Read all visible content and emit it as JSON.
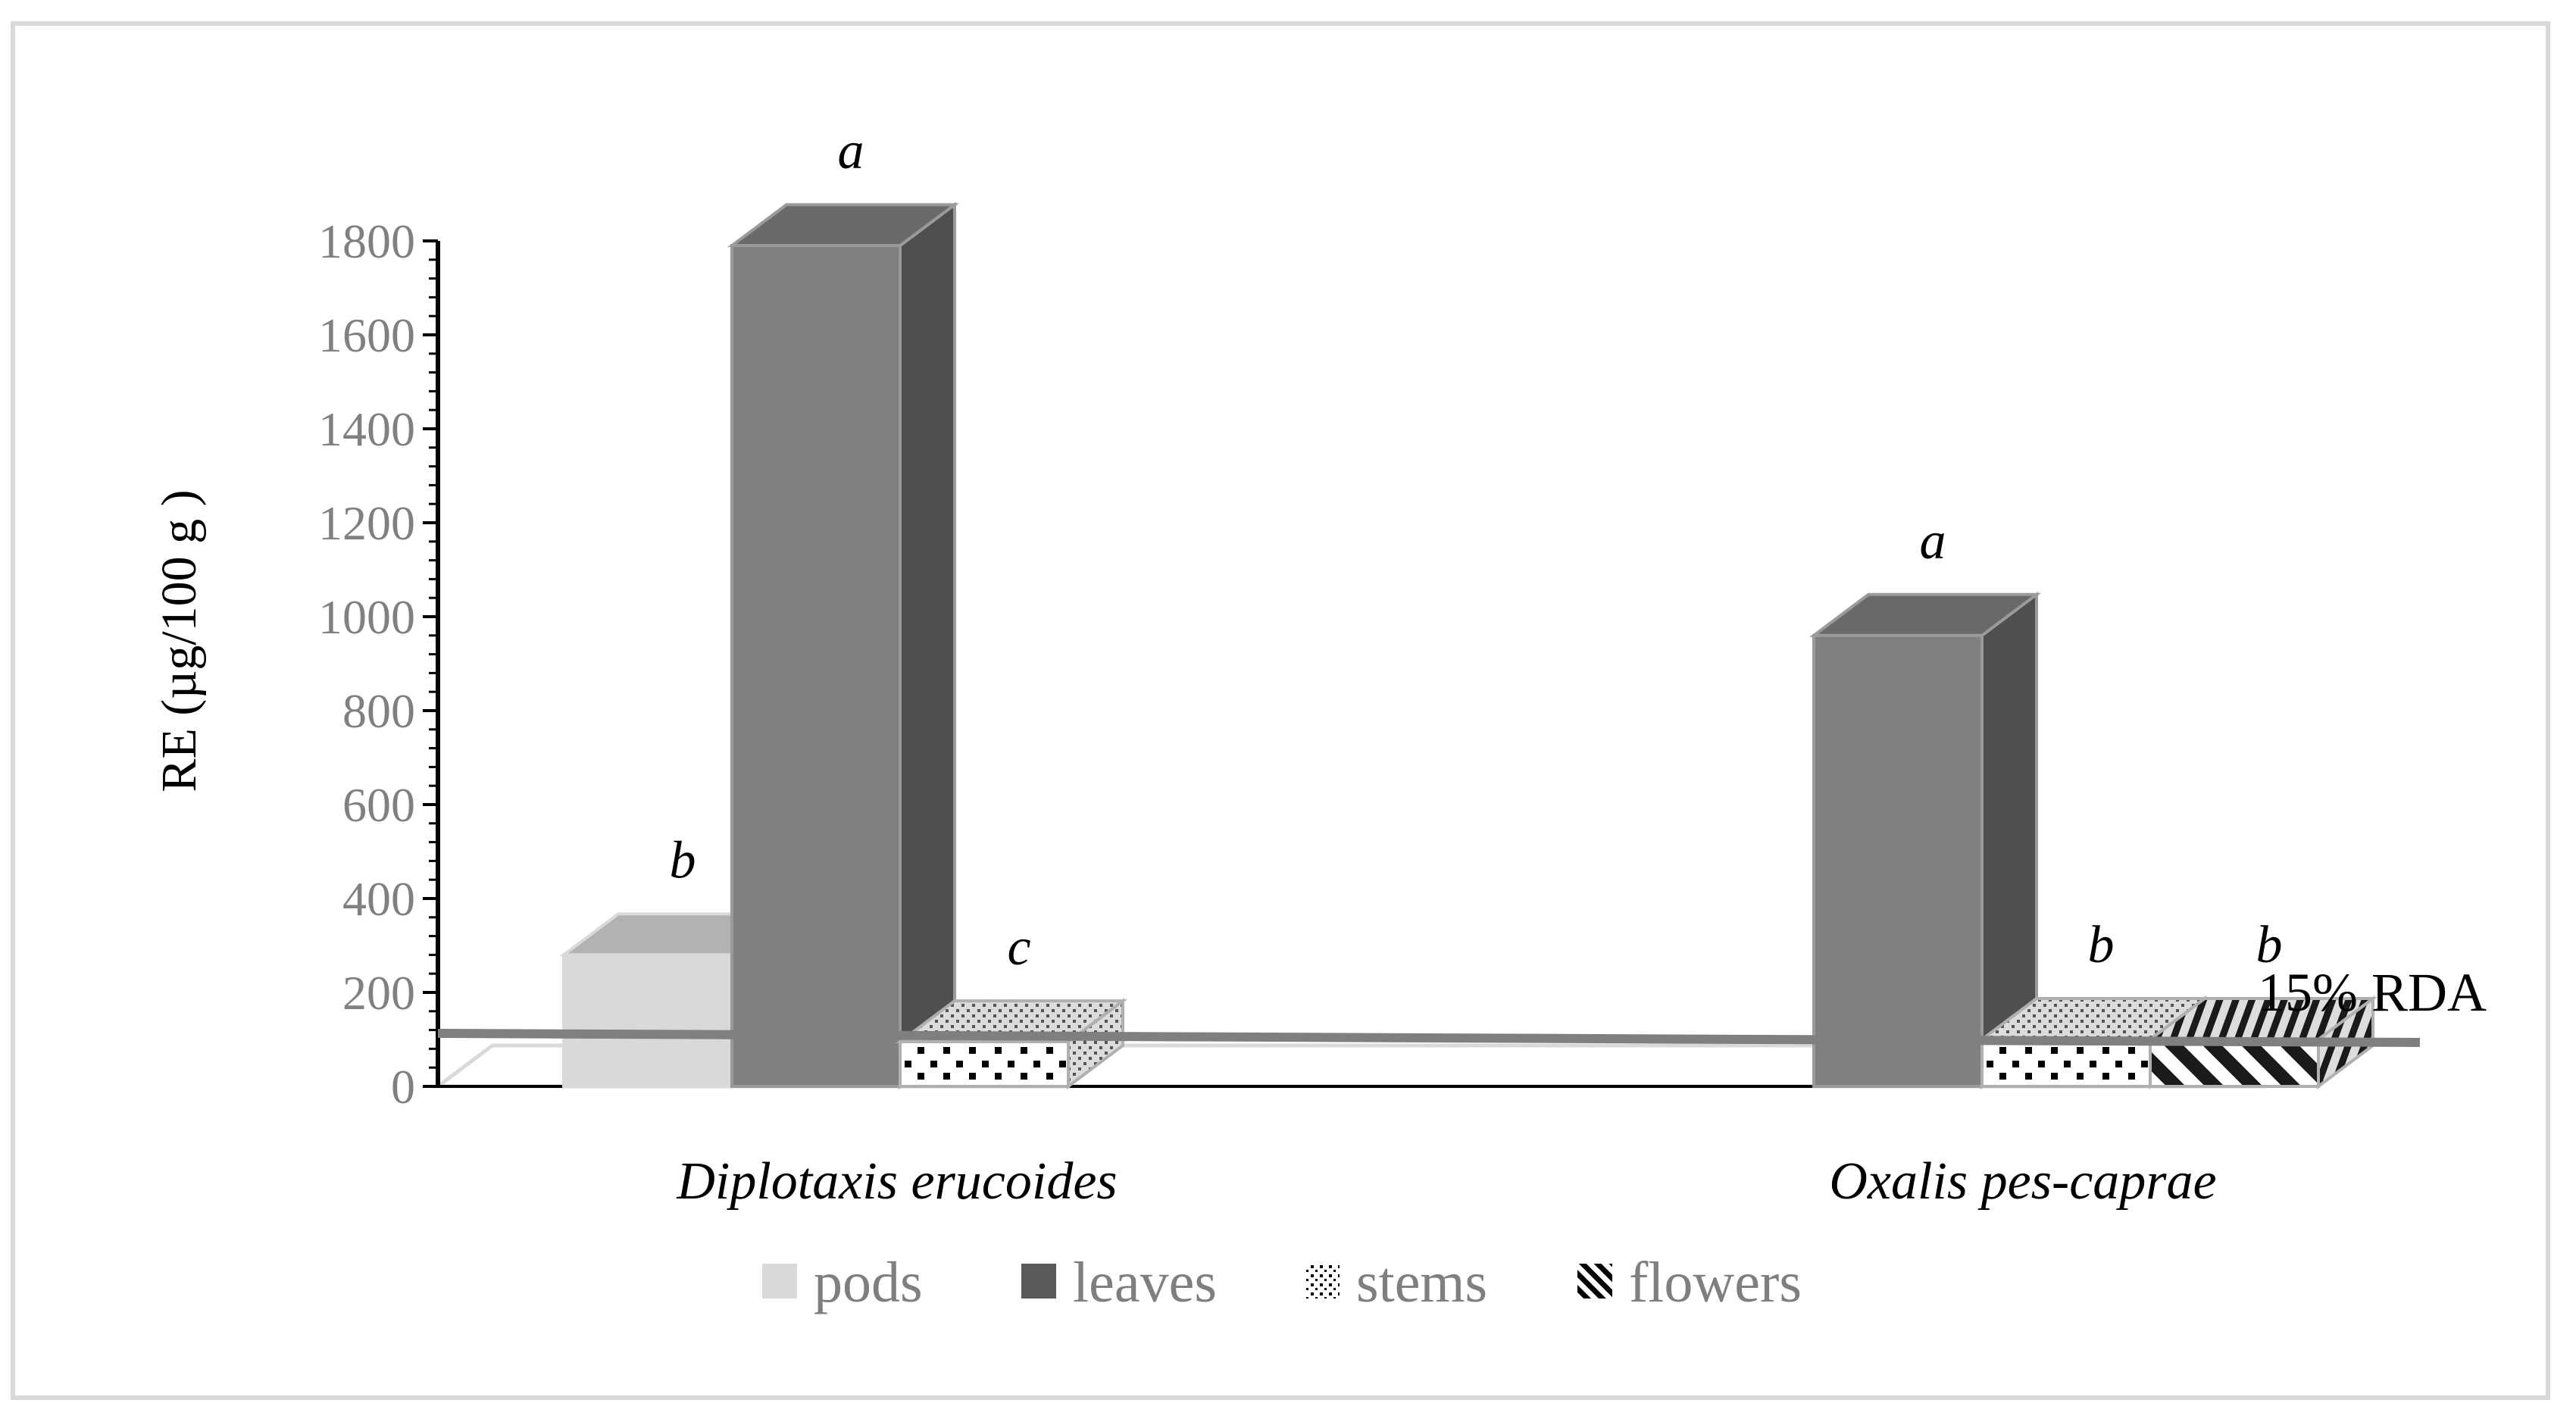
{
  "chart_data": {
    "type": "bar",
    "ylabel": "RE (µg/100 g )",
    "xlabel": "",
    "ylim": [
      0,
      1800
    ],
    "yticks": [
      0,
      200,
      400,
      600,
      800,
      1000,
      1200,
      1400,
      1600,
      1800
    ],
    "categories": [
      "Diplotaxis erucoides",
      "Oxalis pes-caprae"
    ],
    "series": [
      {
        "name": "pods",
        "values": [
          280,
          null
        ],
        "labels": [
          "b",
          ""
        ],
        "color": "#d9d9d9",
        "pattern": "solid"
      },
      {
        "name": "leaves",
        "values": [
          1790,
          960
        ],
        "labels": [
          "a",
          "a"
        ],
        "color": "#808080",
        "pattern": "solid"
      },
      {
        "name": "stems",
        "values": [
          95,
          100
        ],
        "labels": [
          "c",
          "b"
        ],
        "color": "#ffffff",
        "pattern": "dots"
      },
      {
        "name": "flowers",
        "values": [
          null,
          100
        ],
        "labels": [
          "",
          "b"
        ],
        "color": "#ffffff",
        "pattern": "diagonal"
      }
    ],
    "reference_line": {
      "label": "15% RDA",
      "value": 100,
      "color": "#7f7f7f"
    },
    "legend_position": "bottom",
    "grid": false,
    "style": "3d-column"
  }
}
